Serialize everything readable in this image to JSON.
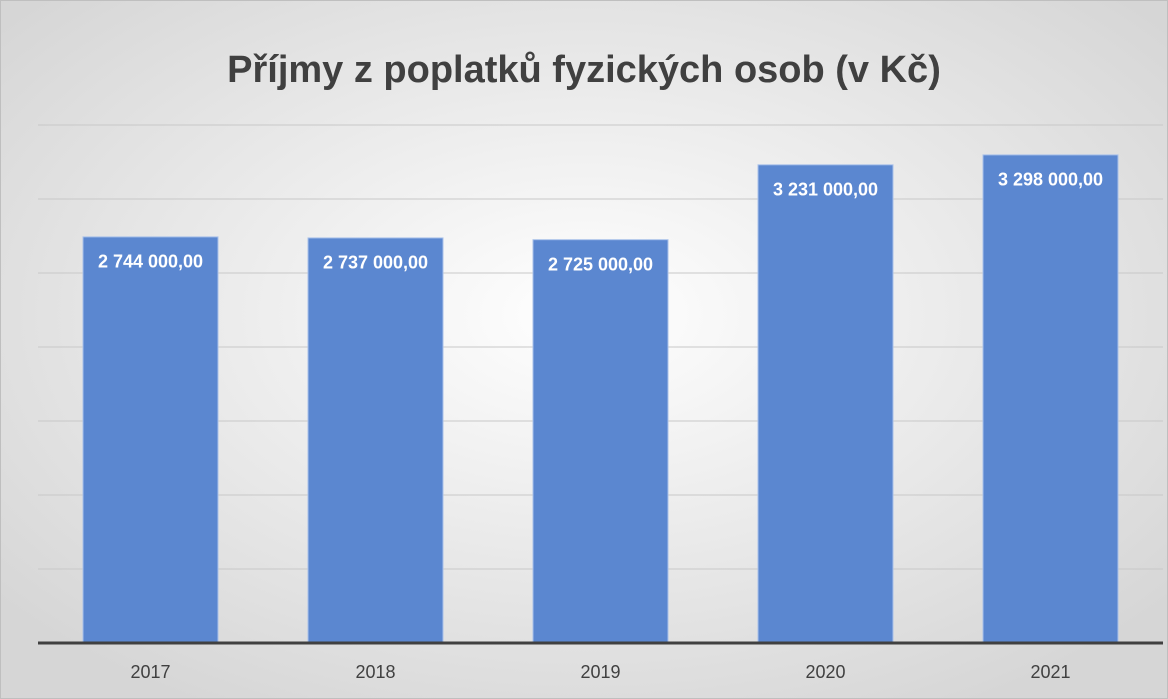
{
  "chart_data": {
    "type": "bar",
    "title": "Příjmy z poplatků fyzických osob (v Kč)",
    "categories": [
      "2017",
      "2018",
      "2019",
      "2020",
      "2021"
    ],
    "values": [
      2744000,
      2737000,
      2725000,
      3231000,
      3298000
    ],
    "value_labels": [
      "2 744 000,00",
      "2 737 000,00",
      "2 725 000,00",
      "3 231 000,00",
      "3 298 000,00"
    ],
    "color": "#5b87d0",
    "ylim": [
      0,
      3500000
    ],
    "yticks": [
      0,
      500000,
      1000000,
      1500000,
      2000000,
      2500000,
      3000000,
      3500000
    ],
    "grid": true
  }
}
